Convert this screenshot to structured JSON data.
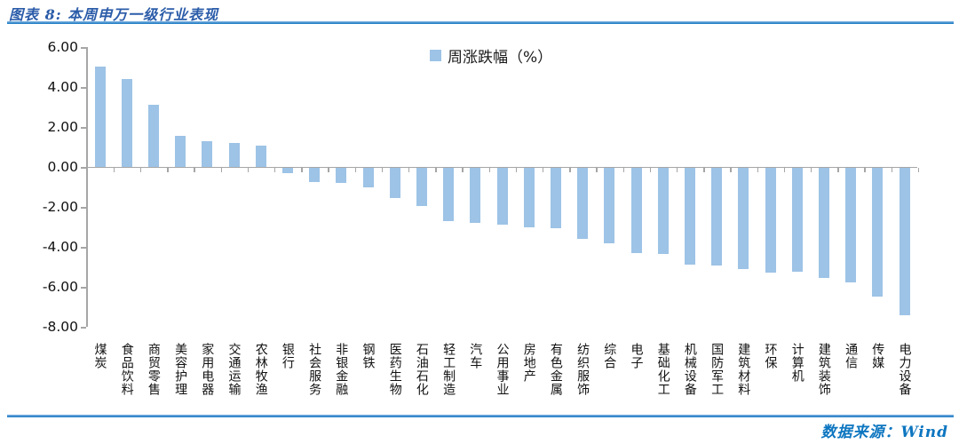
{
  "page": {
    "title": "图表 8: 本周申万一级行业表现",
    "source": "数据来源：Wind"
  },
  "chart_data": {
    "type": "bar",
    "title": "本周申万一级行业表现",
    "legend": [
      "周涨跌幅（%）"
    ],
    "legend_position": "top-center",
    "grid": false,
    "ylim": [
      -8,
      6
    ],
    "ytick_step": 2,
    "yticks": [
      "6.00",
      "4.00",
      "2.00",
      "0.00",
      "-2.00",
      "-4.00",
      "-6.00",
      "-8.00"
    ],
    "bar_color": "#9dc3e6",
    "categories": [
      "煤炭",
      "食品饮料",
      "商贸零售",
      "美容护理",
      "家用电器",
      "交通运输",
      "农林牧渔",
      "银行",
      "社会服务",
      "非银金融",
      "钢铁",
      "医药生物",
      "石油石化",
      "轻工制造",
      "汽车",
      "公用事业",
      "房地产",
      "有色金属",
      "纺织服饰",
      "综合",
      "电子",
      "基础化工",
      "机械设备",
      "国防军工",
      "建筑材料",
      "环保",
      "计算机",
      "建筑装饰",
      "通信",
      "传媒",
      "电力设备"
    ],
    "values": [
      5.02,
      4.4,
      3.11,
      1.55,
      1.31,
      1.2,
      1.08,
      -0.27,
      -0.7,
      -0.76,
      -0.98,
      -1.5,
      -1.92,
      -2.67,
      -2.74,
      -2.85,
      -2.96,
      -3.02,
      -3.53,
      -3.77,
      -4.25,
      -4.28,
      -4.83,
      -4.89,
      -5.07,
      -5.22,
      -5.2,
      -5.48,
      -5.73,
      -6.43,
      -7.38
    ]
  },
  "colors": {
    "bar": "#9dc3e6",
    "axis": "#a6a6a6",
    "title_text": "#2b5ca9",
    "rule_line": "#1778c2",
    "source_text": "#0d76c0"
  }
}
